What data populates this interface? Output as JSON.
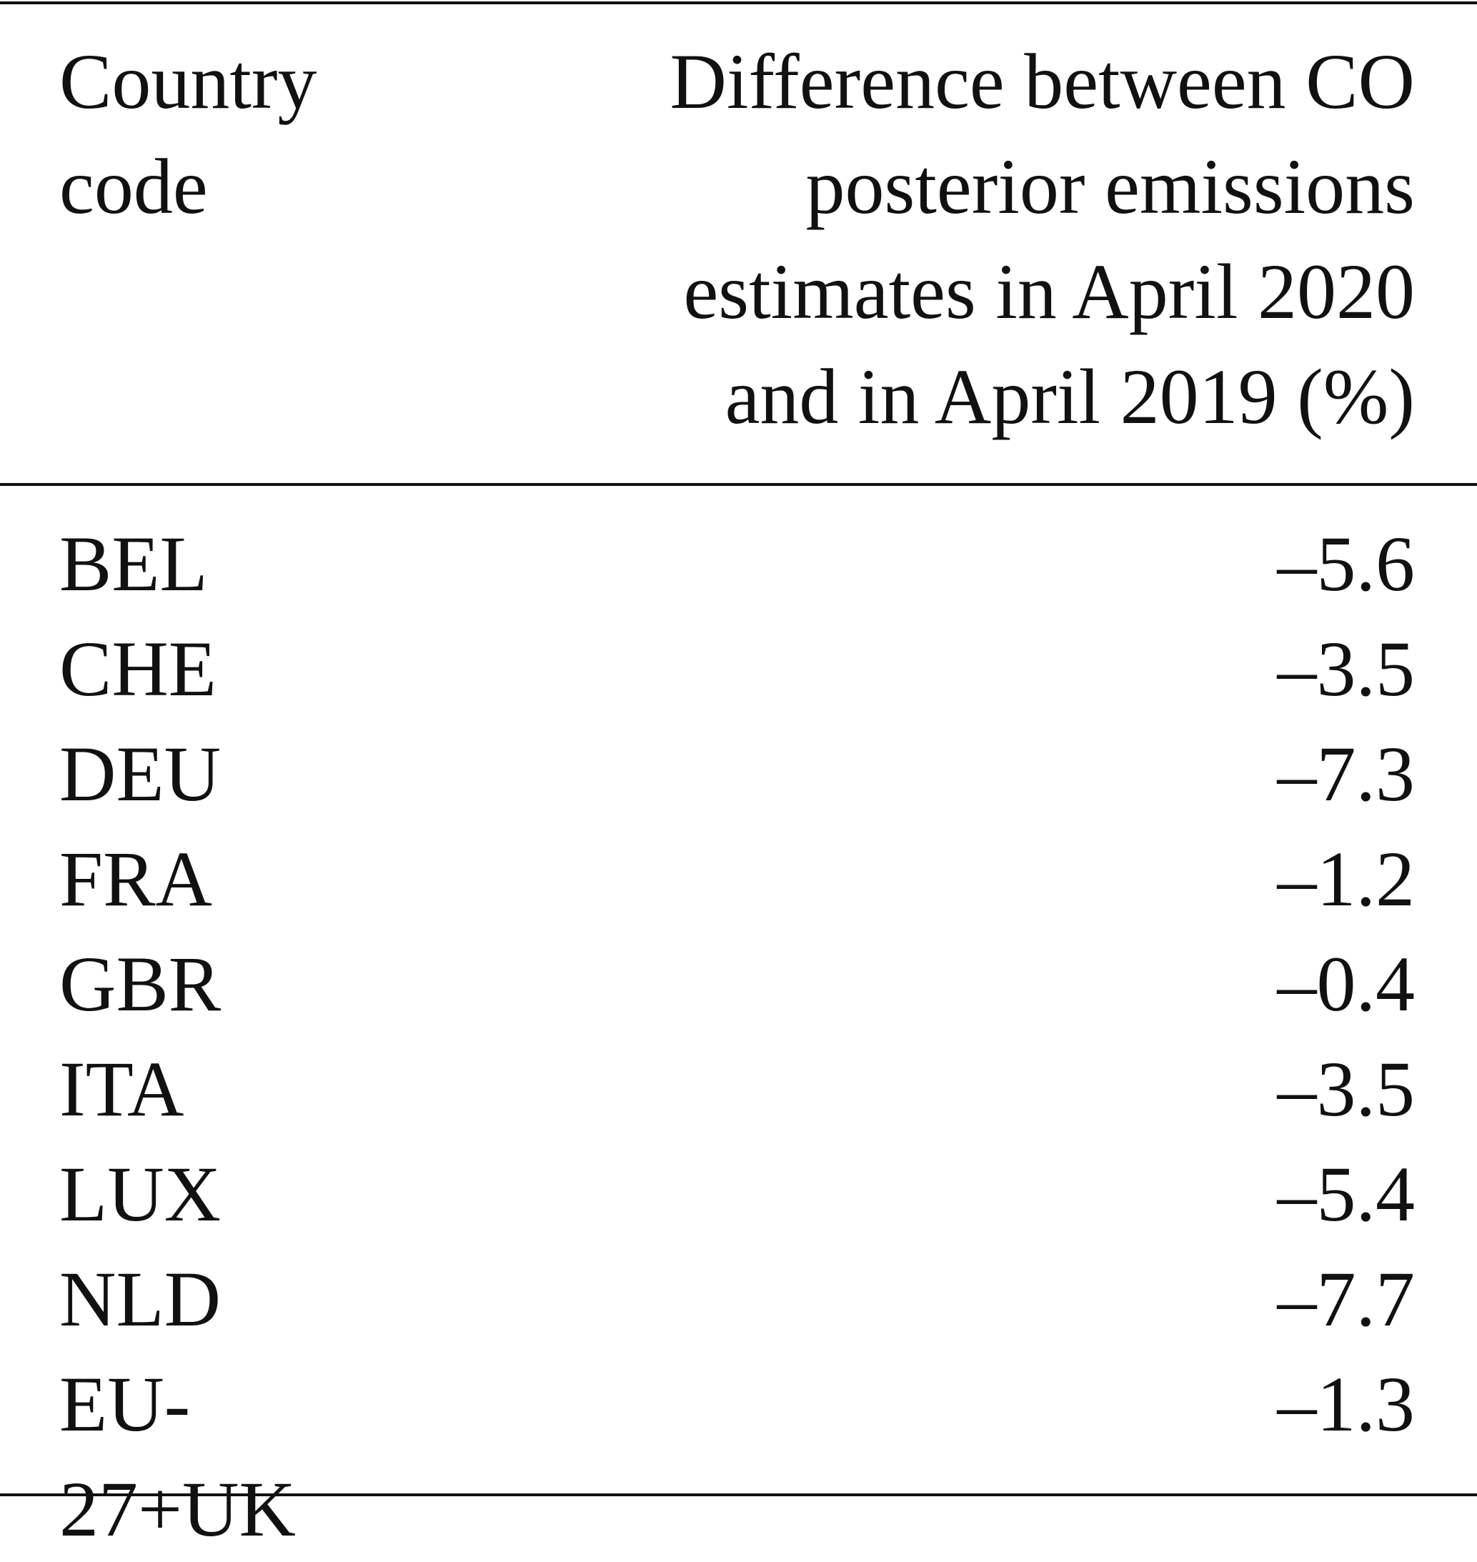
{
  "table": {
    "header": [
      "Country code",
      "Difference between CO posterior emissions estimates in April 2020 and in April 2019 (%)"
    ],
    "rows": [
      [
        "BEL",
        "–5.6"
      ],
      [
        "CHE",
        "–3.5"
      ],
      [
        "DEU",
        "–7.3"
      ],
      [
        "FRA",
        "–1.2"
      ],
      [
        "GBR",
        "–0.4"
      ],
      [
        "ITA",
        "–3.5"
      ],
      [
        "LUX",
        "–5.4"
      ],
      [
        "NLD",
        "–7.7"
      ],
      [
        "EU-27+UK",
        "–1.3"
      ]
    ]
  }
}
